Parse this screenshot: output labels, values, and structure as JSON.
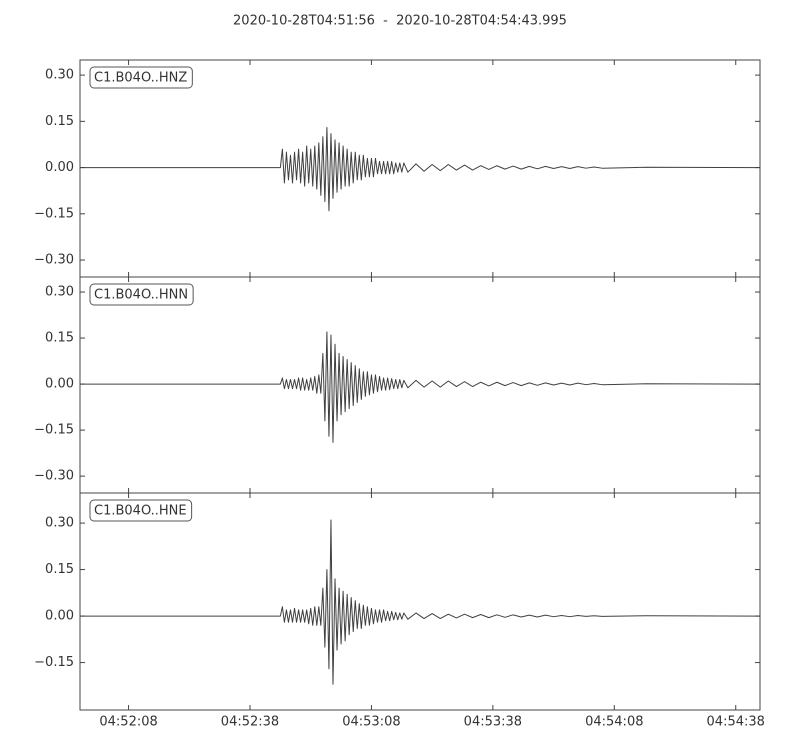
{
  "chart_data": [
    {
      "type": "line",
      "title": "2020-10-28T04:51:56  -  2020-10-28T04:54:43.995",
      "x": [
        0,
        49.5,
        50,
        50.5,
        51,
        51.5,
        52,
        52.5,
        53,
        53.5,
        54,
        54.5,
        55,
        55.5,
        56,
        56.5,
        57,
        57.5,
        58,
        58.5,
        59,
        59.5,
        60,
        60.5,
        61,
        61.5,
        62,
        62.5,
        63,
        63.5,
        64,
        64.5,
        65,
        65.5,
        66,
        66.5,
        67,
        67.5,
        68,
        68.5,
        69,
        69.5,
        70,
        70.5,
        71,
        71.5,
        72,
        72.5,
        73,
        73.5,
        74,
        74.5,
        75,
        75.5,
        76,
        76.5,
        77,
        77.5,
        78,
        78.5,
        79,
        79.5,
        80,
        81,
        83,
        85,
        87,
        89,
        91,
        93,
        95,
        97,
        99,
        101,
        103,
        105,
        107,
        109,
        111,
        113,
        115,
        117,
        119,
        121,
        123,
        125,
        127,
        129,
        140,
        167.995
      ],
      "series": [
        {
          "name": "C1.B04O..HNZ",
          "color": "#404040",
          "values": [
            0,
            0,
            0.06,
            -0.05,
            0.05,
            -0.04,
            0.04,
            -0.05,
            0.05,
            -0.04,
            0.06,
            -0.05,
            0.05,
            -0.06,
            0.07,
            -0.05,
            0.06,
            -0.06,
            0.07,
            -0.07,
            0.08,
            -0.09,
            0.1,
            -0.11,
            0.13,
            -0.14,
            0.11,
            -0.1,
            0.09,
            -0.08,
            0.08,
            -0.07,
            0.07,
            -0.06,
            0.06,
            -0.06,
            0.05,
            -0.05,
            0.05,
            -0.04,
            0.04,
            -0.04,
            0.04,
            -0.03,
            0.03,
            -0.03,
            0.03,
            -0.03,
            0.03,
            -0.02,
            0.02,
            -0.02,
            0.02,
            -0.02,
            0.02,
            -0.02,
            0.02,
            -0.02,
            0.015,
            -0.015,
            0.015,
            -0.015,
            0.015,
            -0.015,
            0.012,
            -0.012,
            0.01,
            -0.01,
            0.01,
            -0.008,
            0.008,
            -0.008,
            0.006,
            -0.006,
            0.006,
            -0.005,
            0.005,
            -0.005,
            0.004,
            -0.004,
            0.004,
            -0.003,
            0.003,
            -0.003,
            0.003,
            -0.002,
            0.002,
            -0.002,
            0.001,
            0
          ]
        }
      ],
      "xlim": [
        0,
        167.995
      ],
      "ylim": [
        -0.355,
        0.349
      ],
      "yticks": [
        {
          "value": 0.3,
          "label": "0.30"
        },
        {
          "value": 0.15,
          "label": "0.15"
        },
        {
          "value": 0,
          "label": "0.00"
        },
        {
          "value": -0.15,
          "label": "−0.15"
        },
        {
          "value": -0.3,
          "label": "−0.30"
        }
      ]
    },
    {
      "type": "line",
      "x": [
        0,
        49.5,
        50,
        50.5,
        51,
        51.5,
        52,
        52.5,
        53,
        53.5,
        54,
        54.5,
        55,
        55.5,
        56,
        56.5,
        57,
        57.5,
        58,
        58.5,
        59,
        59.5,
        60,
        60.5,
        61,
        61.5,
        62,
        62.5,
        63,
        63.5,
        64,
        64.5,
        65,
        65.5,
        66,
        66.5,
        67,
        67.5,
        68,
        68.5,
        69,
        69.5,
        70,
        70.5,
        71,
        71.5,
        72,
        72.5,
        73,
        73.5,
        74,
        74.5,
        75,
        75.5,
        76,
        76.5,
        77,
        77.5,
        78,
        78.5,
        79,
        79.5,
        80,
        81,
        83,
        85,
        87,
        89,
        91,
        93,
        95,
        97,
        99,
        101,
        103,
        105,
        107,
        109,
        111,
        113,
        115,
        117,
        119,
        121,
        123,
        125,
        127,
        129,
        140,
        167.995
      ],
      "series": [
        {
          "name": "C1.B04O..HNN",
          "color": "#404040",
          "values": [
            0,
            0,
            0.02,
            -0.015,
            0.015,
            -0.015,
            0.015,
            -0.015,
            0.015,
            -0.015,
            0.02,
            -0.02,
            0.02,
            -0.02,
            0.015,
            -0.02,
            0.02,
            -0.02,
            0.025,
            -0.03,
            0.03,
            -0.03,
            0.1,
            -0.12,
            0.17,
            -0.17,
            0.16,
            -0.19,
            0.13,
            -0.12,
            0.1,
            -0.1,
            0.09,
            -0.09,
            0.08,
            -0.08,
            0.07,
            -0.07,
            0.06,
            -0.06,
            0.05,
            -0.05,
            0.04,
            -0.04,
            0.04,
            -0.035,
            0.03,
            -0.03,
            0.03,
            -0.025,
            0.025,
            -0.02,
            0.02,
            -0.02,
            0.02,
            -0.018,
            0.018,
            -0.015,
            0.015,
            -0.015,
            0.015,
            -0.012,
            0.012,
            -0.012,
            0.012,
            -0.01,
            0.01,
            -0.01,
            0.01,
            -0.008,
            0.008,
            -0.008,
            0.006,
            -0.006,
            0.006,
            -0.005,
            0.005,
            -0.005,
            0.004,
            -0.004,
            0.004,
            -0.003,
            0.003,
            -0.003,
            0.003,
            -0.002,
            0.002,
            -0.002,
            0.001,
            0
          ]
        }
      ],
      "xlim": [
        0,
        167.995
      ],
      "ylim": [
        -0.355,
        0.349
      ],
      "yticks": [
        {
          "value": 0.3,
          "label": "0.30"
        },
        {
          "value": 0.15,
          "label": "0.15"
        },
        {
          "value": 0,
          "label": "0.00"
        },
        {
          "value": -0.15,
          "label": "−0.15"
        },
        {
          "value": -0.3,
          "label": "−0.30"
        }
      ]
    },
    {
      "type": "line",
      "x": [
        0,
        49.5,
        50,
        50.5,
        51,
        51.5,
        52,
        52.5,
        53,
        53.5,
        54,
        54.5,
        55,
        55.5,
        56,
        56.5,
        57,
        57.5,
        58,
        58.5,
        59,
        59.5,
        60,
        60.5,
        61,
        61.5,
        62,
        62.5,
        63,
        63.5,
        64,
        64.5,
        65,
        65.5,
        66,
        66.5,
        67,
        67.5,
        68,
        68.5,
        69,
        69.5,
        70,
        70.5,
        71,
        71.5,
        72,
        72.5,
        73,
        73.5,
        74,
        74.5,
        75,
        75.5,
        76,
        76.5,
        77,
        77.5,
        78,
        78.5,
        79,
        79.5,
        80,
        81,
        83,
        85,
        87,
        89,
        91,
        93,
        95,
        97,
        99,
        101,
        103,
        105,
        107,
        109,
        111,
        113,
        115,
        117,
        119,
        121,
        123,
        125,
        127,
        129,
        140,
        167.995
      ],
      "series": [
        {
          "name": "C1.B04O..HNE",
          "color": "#404040",
          "values": [
            0,
            0,
            0.03,
            -0.02,
            0.02,
            -0.02,
            0.02,
            -0.02,
            0.025,
            -0.02,
            0.02,
            -0.02,
            0.02,
            -0.02,
            0.02,
            -0.025,
            0.025,
            -0.03,
            0.03,
            -0.03,
            0.03,
            -0.03,
            0.09,
            -0.1,
            0.15,
            -0.17,
            0.31,
            -0.22,
            0.12,
            -0.11,
            0.09,
            -0.09,
            0.08,
            -0.08,
            0.07,
            -0.06,
            0.06,
            -0.05,
            0.05,
            -0.04,
            0.04,
            -0.04,
            0.035,
            -0.03,
            0.03,
            -0.03,
            0.025,
            -0.025,
            0.02,
            -0.02,
            0.02,
            -0.02,
            0.02,
            -0.015,
            0.015,
            -0.015,
            0.015,
            -0.012,
            0.012,
            -0.012,
            0.01,
            -0.01,
            0.01,
            -0.01,
            0.01,
            -0.008,
            0.008,
            -0.008,
            0.006,
            -0.006,
            0.006,
            -0.005,
            0.005,
            -0.005,
            0.004,
            -0.004,
            0.004,
            -0.003,
            0.003,
            -0.003,
            0.003,
            -0.002,
            0.002,
            -0.002,
            0.002,
            -0.001,
            0.001,
            -0.001,
            0.001,
            0
          ]
        }
      ],
      "xlim": [
        0,
        167.995
      ],
      "ylim": [
        -0.303,
        0.397
      ],
      "yticks": [
        {
          "value": 0.3,
          "label": "0.30"
        },
        {
          "value": 0.15,
          "label": "0.15"
        },
        {
          "value": 0,
          "label": "0.00"
        },
        {
          "value": -0.15,
          "label": "−0.15"
        }
      ],
      "xticks": [
        {
          "value": 12,
          "label": "04:52:08"
        },
        {
          "value": 42,
          "label": "04:52:38"
        },
        {
          "value": 72,
          "label": "04:53:08"
        },
        {
          "value": 102,
          "label": "04:53:38"
        },
        {
          "value": 132,
          "label": "04:54:08"
        },
        {
          "value": 162,
          "label": "04:54:38"
        }
      ]
    }
  ]
}
